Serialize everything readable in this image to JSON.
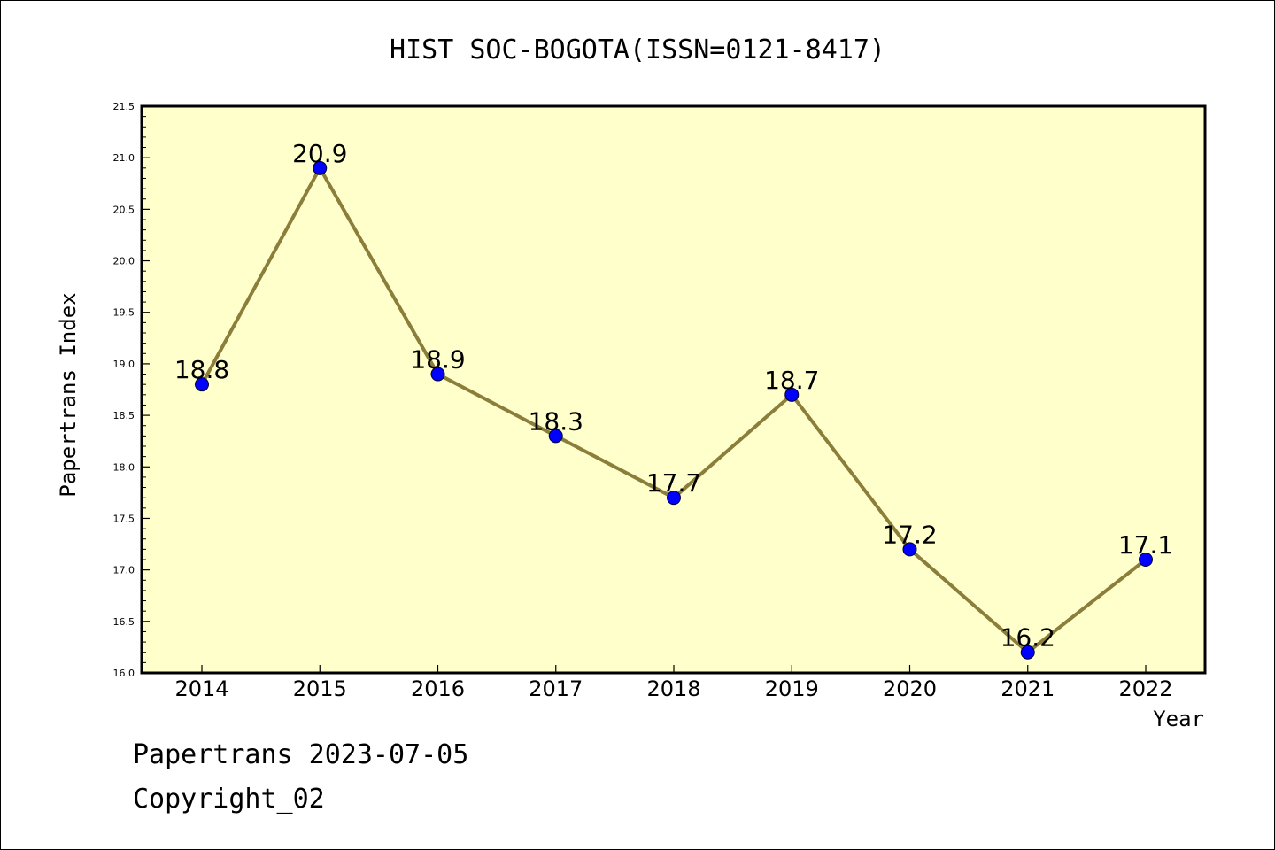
{
  "chart_data": {
    "type": "line",
    "title": "HIST SOC-BOGOTA(ISSN=0121-8417)",
    "xlabel": "Year",
    "ylabel": "Papertrans Index",
    "categories": [
      "2014",
      "2015",
      "2016",
      "2017",
      "2018",
      "2019",
      "2020",
      "2021",
      "2022"
    ],
    "series": [
      {
        "values": [
          18.8,
          20.9,
          18.9,
          18.3,
          17.7,
          18.7,
          17.2,
          16.2,
          17.1
        ],
        "data_labels": [
          "18.8",
          "20.9",
          "18.9",
          "18.3",
          "17.7",
          "18.7",
          "17.2",
          "16.2",
          "17.1"
        ]
      }
    ],
    "ylim": [
      16.0,
      21.5
    ],
    "yticks": [
      "16.0",
      "16.5",
      "17.0",
      "17.5",
      "18.0",
      "18.5",
      "19.0",
      "19.5",
      "20.0",
      "20.5",
      "21.0",
      "21.5"
    ],
    "grid": false,
    "colors": {
      "plot_background": "#ffffcc",
      "line": "#8b7d3a",
      "marker": "#0000ff"
    }
  },
  "footer": {
    "date_line": "Papertrans 2023-07-05",
    "copyright": "Copyright_02"
  }
}
